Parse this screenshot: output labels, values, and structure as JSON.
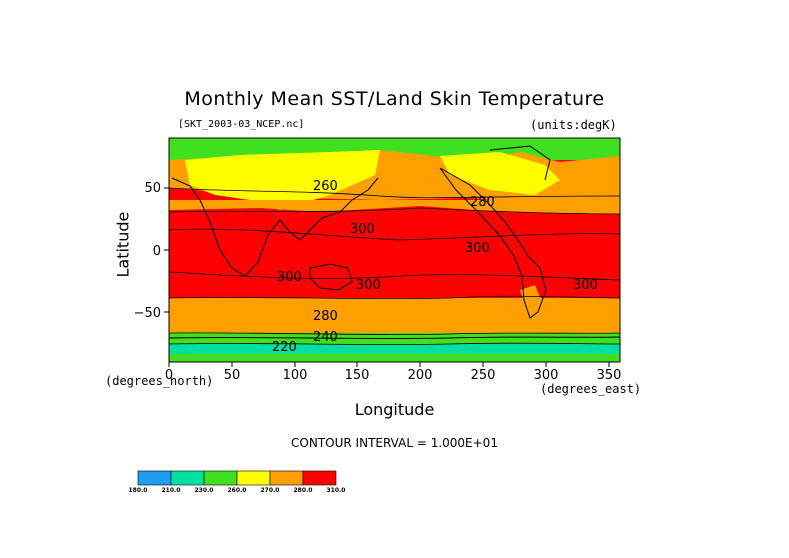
{
  "chart_data": {
    "type": "heatmap",
    "title": "Monthly Mean SST/Land Skin Temperature",
    "subtitle_left": "[SKT_2003-03_NCEP.nc]",
    "subtitle_right": "(units:degK)",
    "xlabel": "Longitude",
    "ylabel": "Latitude",
    "x_coord_label": "(degrees_east)",
    "y_coord_label": "(degrees_north)",
    "xlim": [
      0,
      360
    ],
    "ylim": [
      -90,
      90
    ],
    "x_ticks": [
      "0",
      "50",
      "100",
      "150",
      "200",
      "250",
      "300",
      "350"
    ],
    "y_ticks": [
      "50",
      "0",
      "−50"
    ],
    "contour_labels": [
      "260",
      "280",
      "300",
      "300",
      "300",
      "300",
      "300",
      "280",
      "220",
      "240"
    ],
    "contour_interval": "CONTOUR INTERVAL = 1.000E+01",
    "colorbar": {
      "levels": [
        "180.0",
        "210.0",
        "230.0",
        "260.0",
        "270.0",
        "280.0",
        "310.0"
      ],
      "colors": [
        "#1f9df0",
        "#00e0a0",
        "#40e020",
        "#ffff00",
        "#ffa000",
        "#ff0000"
      ]
    }
  }
}
